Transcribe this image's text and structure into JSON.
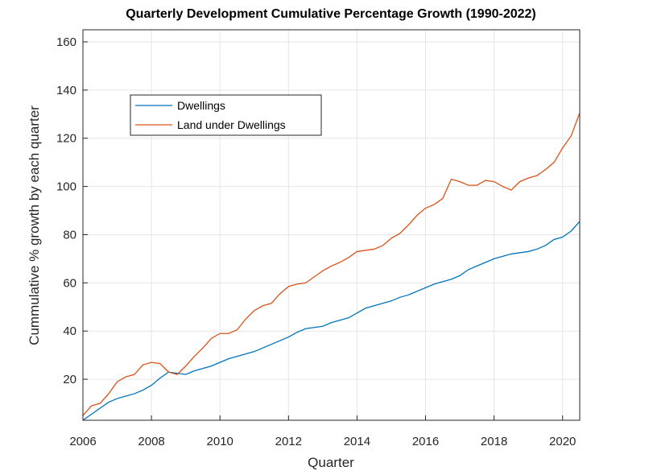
{
  "chart_data": {
    "type": "line",
    "title": "Quarterly Development Cumulative Percentage Growth (1990-2022)",
    "x_label": "Quarter",
    "y_label": "Cummulative % growth by each quarter",
    "x": [
      2006,
      2006.25,
      2006.5,
      2006.75,
      2007,
      2007.25,
      2007.5,
      2007.75,
      2008,
      2008.25,
      2008.5,
      2008.75,
      2009,
      2009.25,
      2009.5,
      2009.75,
      2010,
      2010.25,
      2010.5,
      2010.75,
      2011,
      2011.25,
      2011.5,
      2011.75,
      2012,
      2012.25,
      2012.5,
      2012.75,
      2013,
      2013.25,
      2013.5,
      2013.75,
      2014,
      2014.25,
      2014.5,
      2014.75,
      2015,
      2015.25,
      2015.5,
      2015.75,
      2016,
      2016.25,
      2016.5,
      2016.75,
      2017,
      2017.25,
      2017.5,
      2017.75,
      2018,
      2018.25,
      2018.5,
      2018.75,
      2019,
      2019.25,
      2019.5,
      2019.75,
      2020,
      2020.25,
      2020.5
    ],
    "series": [
      {
        "name": "Dwellings",
        "color": "#0072bd",
        "values": [
          3,
          5.5,
          8,
          10.5,
          12,
          13,
          14,
          15.5,
          17.5,
          20.5,
          23,
          22.5,
          22,
          23.5,
          24.5,
          25.5,
          27,
          28.5,
          29.5,
          30.5,
          31.5,
          33,
          34.5,
          36,
          37.5,
          39.5,
          41,
          41.5,
          42,
          43.5,
          44.5,
          45.5,
          47.5,
          49.5,
          50.5,
          51.5,
          52.5,
          54,
          55,
          56.5,
          58,
          59.5,
          60.5,
          61.5,
          63,
          65.5,
          67,
          68.5,
          70,
          71,
          72,
          72.5,
          73,
          74,
          75.5,
          78,
          79,
          81.5,
          85.5
        ]
      },
      {
        "name": "Land under Dwellings",
        "color": "#d95319",
        "values": [
          5,
          9,
          10,
          14,
          19,
          21,
          22,
          26,
          27,
          26.5,
          23,
          22,
          25.5,
          29.5,
          33,
          37,
          39,
          39,
          40.5,
          45,
          48.5,
          50.5,
          51.5,
          55.5,
          58.5,
          59.5,
          60,
          62.5,
          65,
          67,
          68.5,
          70.5,
          73,
          73.5,
          74,
          75.5,
          78.5,
          80.5,
          84,
          88,
          91,
          92.5,
          95,
          103,
          102,
          100.5,
          100.5,
          102.5,
          102,
          100,
          98.5,
          102,
          103.5,
          104.5,
          107,
          110,
          116,
          121,
          130.5
        ]
      }
    ],
    "xlim": [
      2006,
      2020.5
    ],
    "xticks": [
      2006,
      2008,
      2010,
      2012,
      2014,
      2016,
      2018,
      2020
    ],
    "ylim": [
      3,
      165
    ],
    "yticks": [
      20,
      40,
      60,
      80,
      100,
      120,
      140,
      160
    ],
    "grid": true,
    "legend": "northwest"
  }
}
